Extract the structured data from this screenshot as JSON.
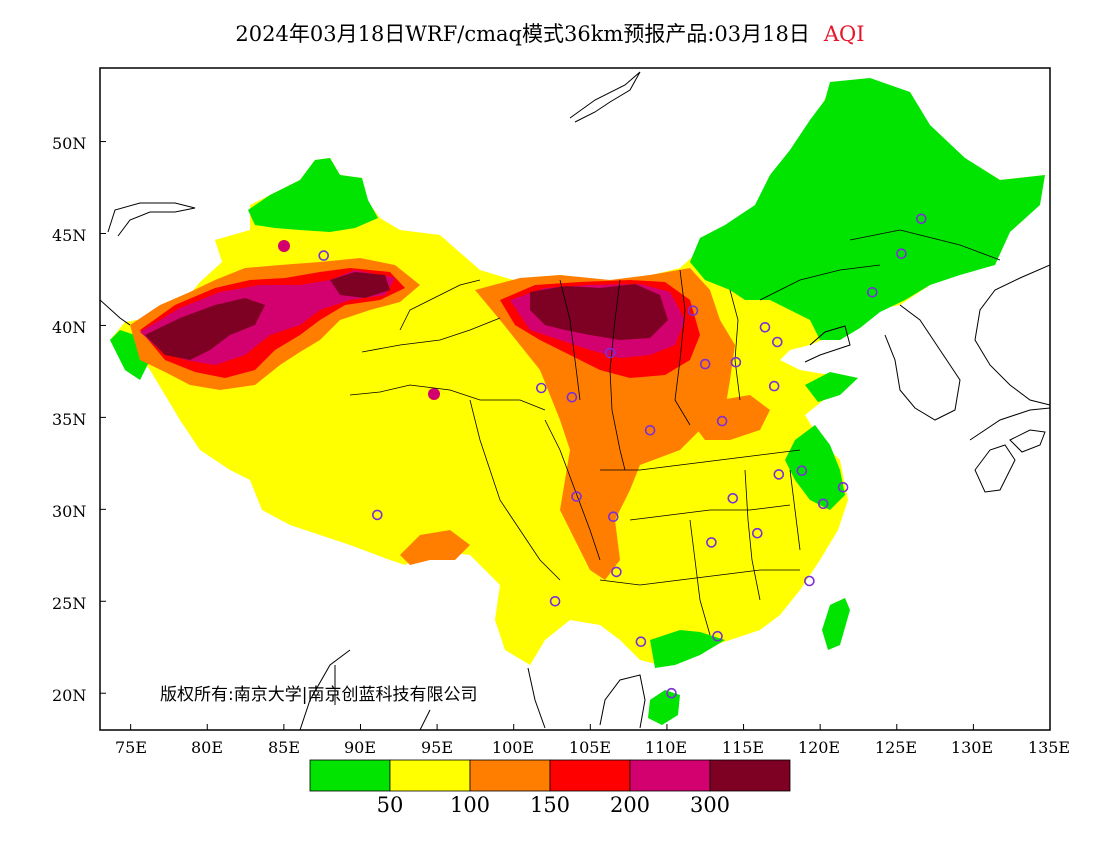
{
  "title": {
    "text": "2024年03月18日WRF/cmaq模式36km预报产品:03月18日",
    "variable": "AQI"
  },
  "copyright": "版权所有:南京大学|南京创蓝科技有限公司",
  "map": {
    "lat_range": [
      18,
      54
    ],
    "lon_range": [
      73,
      135
    ],
    "lat_ticks": [
      "50N",
      "45N",
      "40N",
      "35N",
      "30N",
      "25N",
      "20N"
    ],
    "lon_ticks": [
      "75E",
      "80E",
      "85E",
      "90E",
      "95E",
      "100E",
      "105E",
      "110E",
      "115E",
      "120E",
      "125E",
      "130E",
      "135E"
    ]
  },
  "legend": {
    "colors": [
      "#00e400",
      "#ffff00",
      "#ff7e00",
      "#ff0000",
      "#d3006f",
      "#7e0023"
    ],
    "thresholds": [
      "50",
      "100",
      "150",
      "200",
      "300"
    ]
  },
  "stations": [
    {
      "lon": 87.6,
      "lat": 43.8
    },
    {
      "lon": 91.1,
      "lat": 29.7
    },
    {
      "lon": 101.8,
      "lat": 36.6
    },
    {
      "lon": 103.8,
      "lat": 36.1
    },
    {
      "lon": 106.3,
      "lat": 38.5
    },
    {
      "lon": 108.9,
      "lat": 34.3
    },
    {
      "lon": 111.7,
      "lat": 40.8
    },
    {
      "lon": 112.5,
      "lat": 37.9
    },
    {
      "lon": 114.5,
      "lat": 38.0
    },
    {
      "lon": 116.4,
      "lat": 39.9
    },
    {
      "lon": 117.2,
      "lat": 39.1
    },
    {
      "lon": 117.0,
      "lat": 36.7
    },
    {
      "lon": 113.6,
      "lat": 34.8
    },
    {
      "lon": 104.1,
      "lat": 30.7
    },
    {
      "lon": 106.5,
      "lat": 29.6
    },
    {
      "lon": 114.3,
      "lat": 30.6
    },
    {
      "lon": 112.9,
      "lat": 28.2
    },
    {
      "lon": 115.9,
      "lat": 28.7
    },
    {
      "lon": 117.3,
      "lat": 31.9
    },
    {
      "lon": 118.8,
      "lat": 32.1
    },
    {
      "lon": 120.2,
      "lat": 30.3
    },
    {
      "lon": 121.5,
      "lat": 31.2
    },
    {
      "lon": 119.3,
      "lat": 26.1
    },
    {
      "lon": 113.3,
      "lat": 23.1
    },
    {
      "lon": 108.3,
      "lat": 22.8
    },
    {
      "lon": 110.3,
      "lat": 20.0
    },
    {
      "lon": 102.7,
      "lat": 25.0
    },
    {
      "lon": 106.7,
      "lat": 26.6
    },
    {
      "lon": 123.4,
      "lat": 41.8
    },
    {
      "lon": 125.3,
      "lat": 43.9
    },
    {
      "lon": 126.6,
      "lat": 45.8
    }
  ]
}
